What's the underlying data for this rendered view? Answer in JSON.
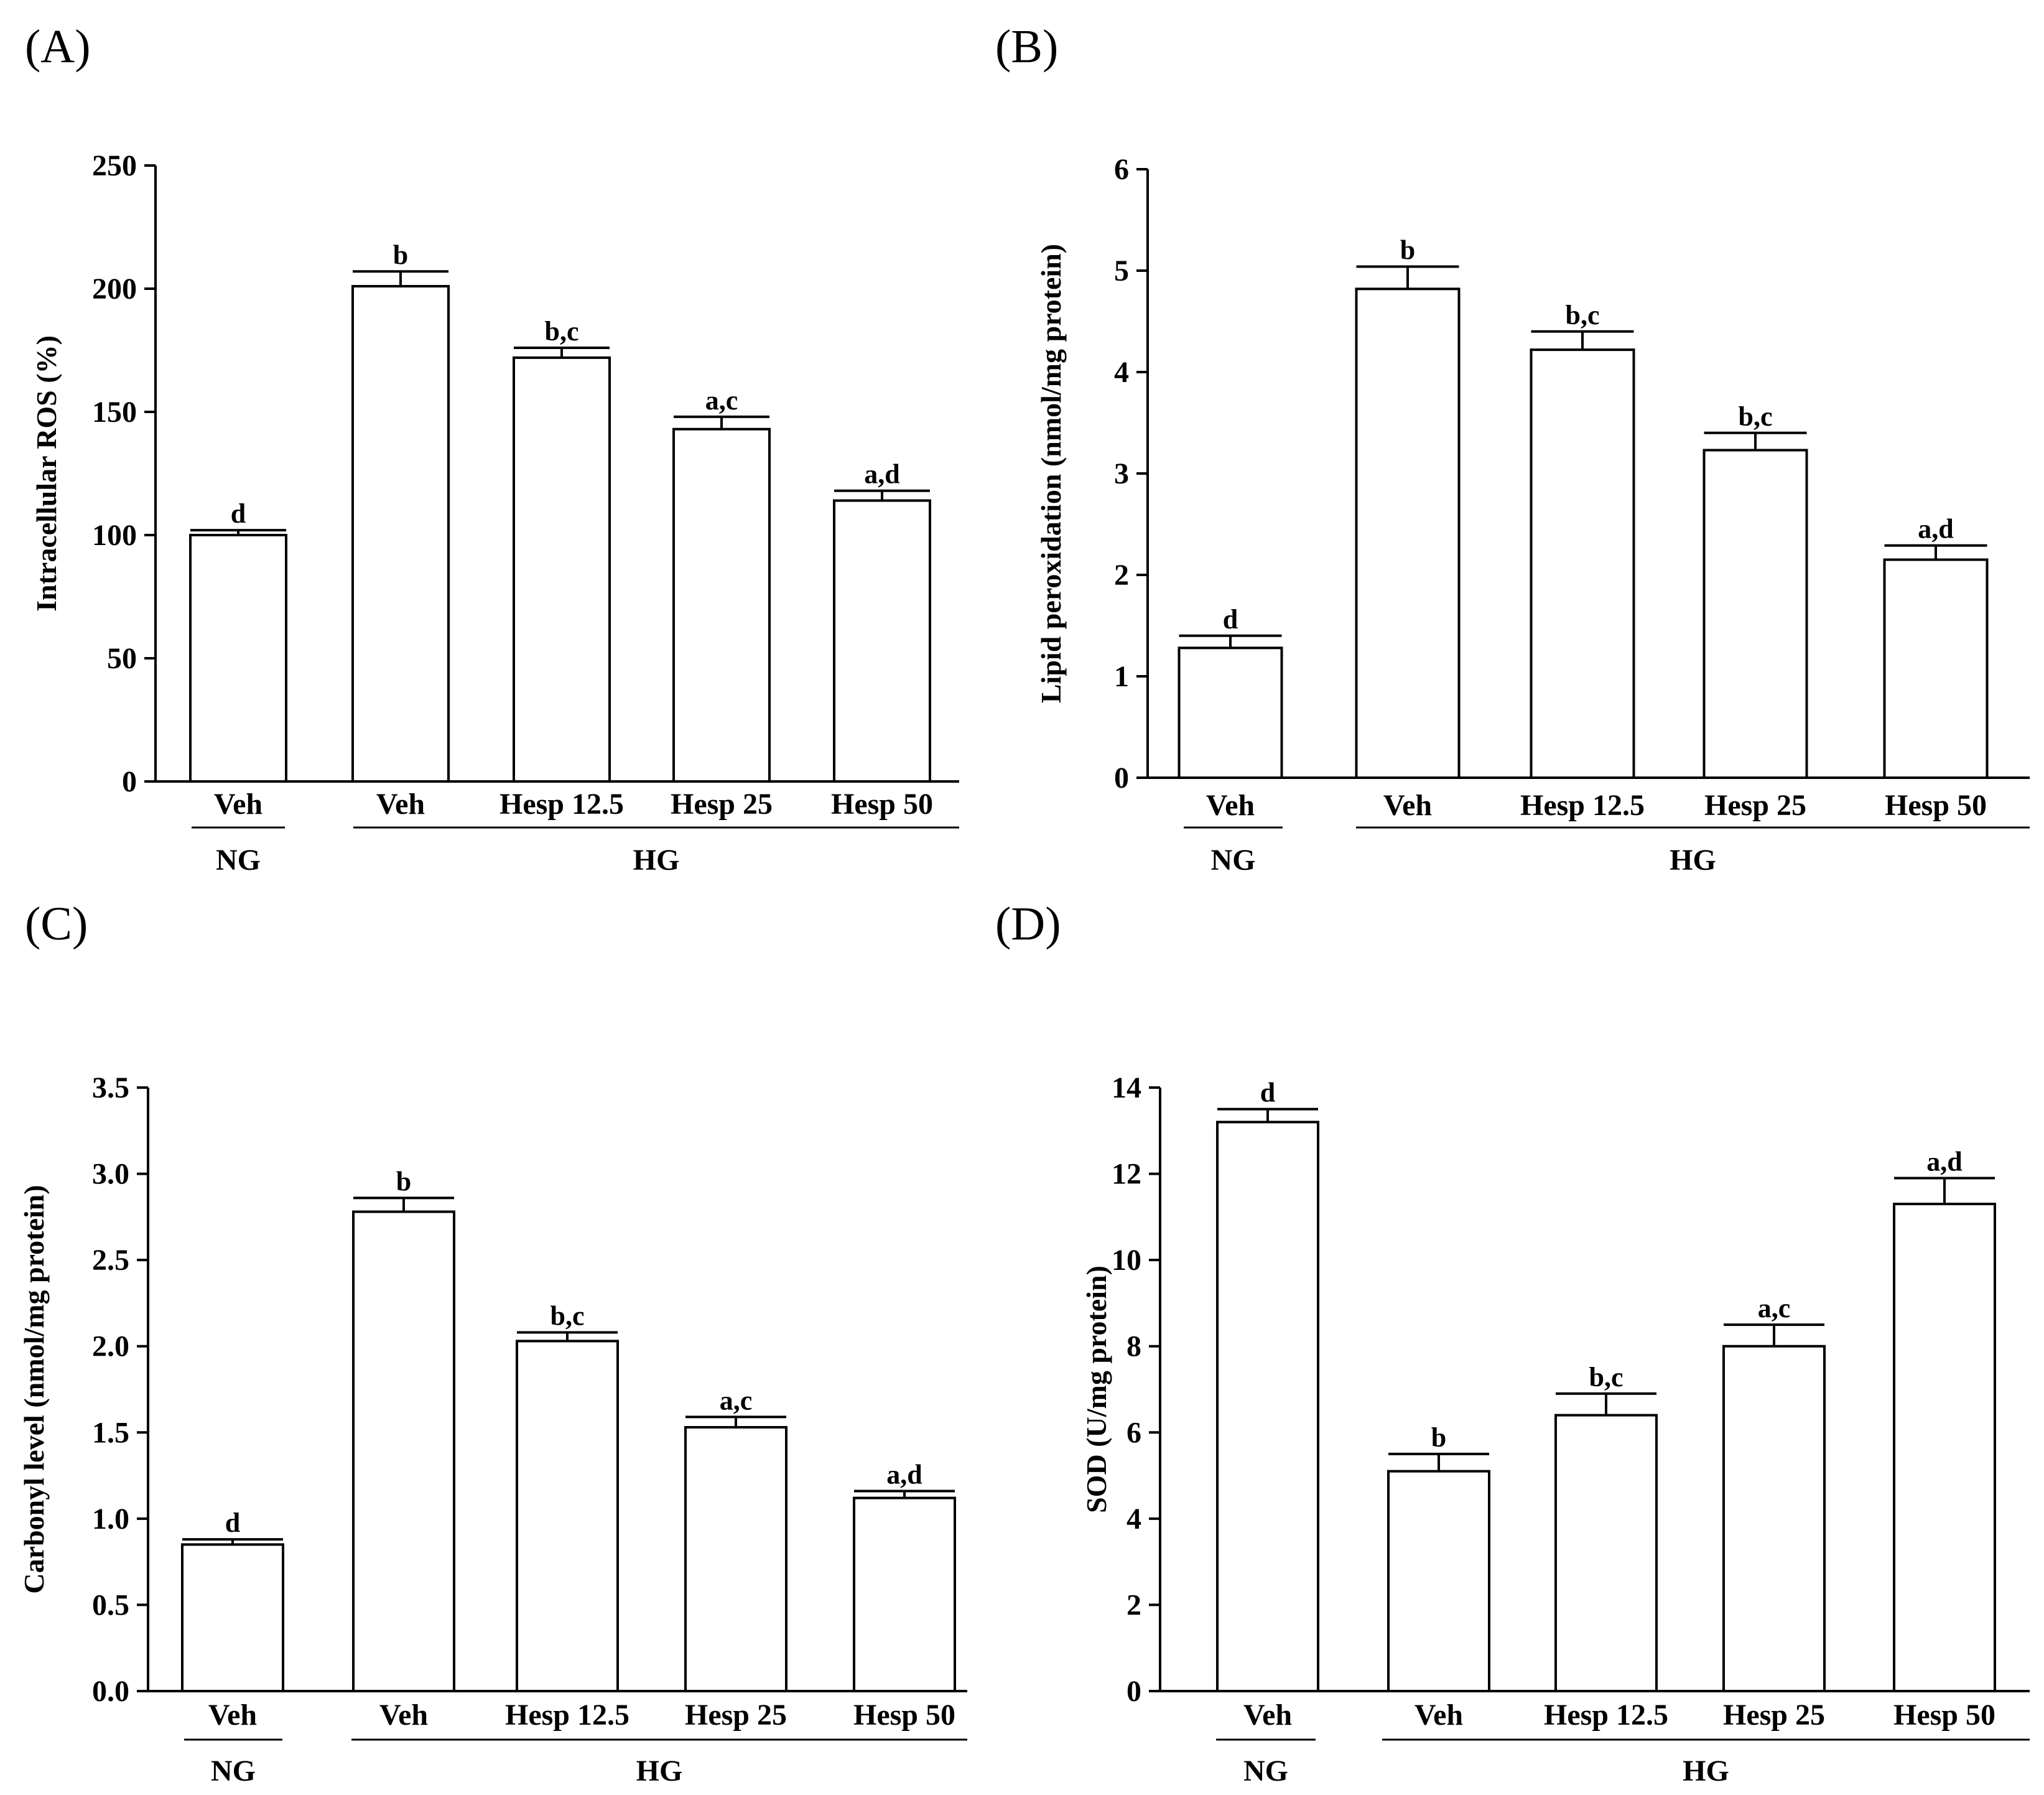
{
  "chart_data": [
    {
      "panel": "(A)",
      "type": "bar",
      "ylabel": "Intracellular ROS (%)",
      "ylim": [
        0,
        250
      ],
      "yticks": [
        "0",
        "50",
        "100",
        "150",
        "200",
        "250"
      ],
      "categories": [
        "Veh",
        "Veh",
        "Hesp 12.5",
        "Hesp 25",
        "Hesp 50"
      ],
      "groups": [
        "NG",
        "HG"
      ],
      "values": [
        100,
        201,
        172,
        143,
        114
      ],
      "errors": [
        2,
        6,
        4,
        5,
        4
      ],
      "labels": [
        "d",
        "b",
        "b,c",
        "a,c",
        "a,d"
      ]
    },
    {
      "panel": "(B)",
      "type": "bar",
      "ylabel": "Lipid peroxidation (nmol/mg protein)",
      "ylim": [
        0,
        6
      ],
      "yticks": [
        "0",
        "1",
        "2",
        "3",
        "4",
        "5",
        "6"
      ],
      "categories": [
        "Veh",
        "Veh",
        "Hesp 12.5",
        "Hesp 25",
        "Hesp 50"
      ],
      "groups": [
        "NG",
        "HG"
      ],
      "values": [
        1.28,
        4.82,
        4.22,
        3.23,
        2.15
      ],
      "errors": [
        0.12,
        0.22,
        0.18,
        0.17,
        0.14
      ],
      "labels": [
        "d",
        "b",
        "b,c",
        "b,c",
        "a,d"
      ]
    },
    {
      "panel": "(C)",
      "type": "bar",
      "ylabel": "Carbonyl level (nmol/mg protein)",
      "ylim": [
        0,
        3.5
      ],
      "yticks": [
        "0.0",
        "0.5",
        "1.0",
        "1.5",
        "2.0",
        "2.5",
        "3.0",
        "3.5"
      ],
      "categories": [
        "Veh",
        "Veh",
        "Hesp 12.5",
        "Hesp 25",
        "Hesp 50"
      ],
      "groups": [
        "NG",
        "HG"
      ],
      "values": [
        0.85,
        2.78,
        2.03,
        1.53,
        1.12
      ],
      "errors": [
        0.03,
        0.08,
        0.05,
        0.06,
        0.04
      ],
      "labels": [
        "d",
        "b",
        "b,c",
        "a,c",
        "a,d"
      ]
    },
    {
      "panel": "(D)",
      "type": "bar",
      "ylabel": "SOD (U/mg protein)",
      "ylim": [
        0,
        14
      ],
      "yticks": [
        "0",
        "2",
        "4",
        "6",
        "8",
        "10",
        "12",
        "14"
      ],
      "categories": [
        "Veh",
        "Veh",
        "Hesp 12.5",
        "Hesp 25",
        "Hesp 50"
      ],
      "groups": [
        "NG",
        "HG"
      ],
      "values": [
        13.2,
        5.1,
        6.4,
        8.0,
        11.3
      ],
      "errors": [
        0.3,
        0.4,
        0.5,
        0.5,
        0.6
      ],
      "labels": [
        "d",
        "b",
        "b,c",
        "a,c",
        "a,d"
      ]
    }
  ]
}
